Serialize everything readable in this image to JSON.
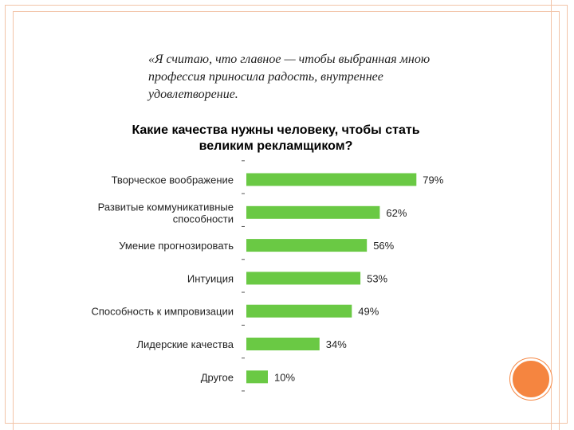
{
  "quote": {
    "line1": "«Я считаю, что главное — чтобы выбранная мною",
    "line2": "профессия приносила радость, внутреннее",
    "line3": "удовлетворение."
  },
  "colors": {
    "bar": "#6ac944",
    "frame": "#f2c4a8",
    "accent_circle": "#f58540"
  },
  "chart_data": {
    "type": "bar",
    "orientation": "horizontal",
    "title_line1": "Какие качества нужны человеку, чтобы стать",
    "title_line2": "великим рекламщиком?",
    "categories": [
      [
        "Творческое воображение"
      ],
      [
        "Развитые коммуникативные",
        "способности"
      ],
      [
        "Умение прогнозировать"
      ],
      [
        "Интуиция"
      ],
      [
        "Способность к импровизации"
      ],
      [
        "Лидерские качества"
      ],
      [
        "Другое"
      ]
    ],
    "values": [
      79,
      62,
      56,
      53,
      49,
      34,
      10
    ],
    "value_labels": [
      "79%",
      "62%",
      "56%",
      "53%",
      "49%",
      "34%",
      "10%"
    ],
    "xlim": [
      0,
      100
    ],
    "grid": false,
    "legend": "none"
  }
}
